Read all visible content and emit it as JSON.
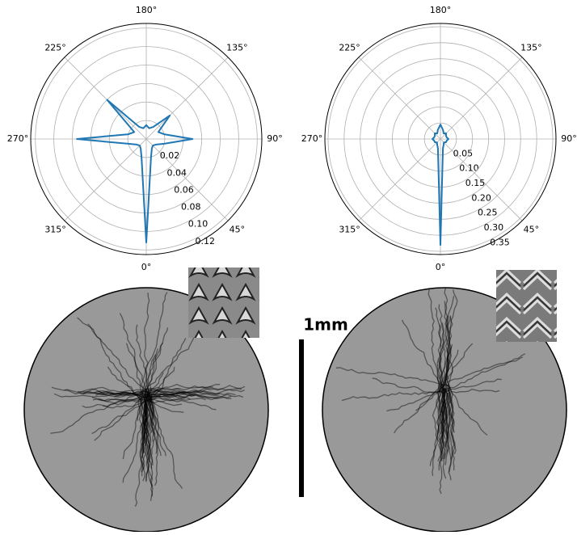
{
  "chart_data": [
    {
      "type": "polar",
      "color": "#1f77b4",
      "thetaticks": [
        {
          "value": 0,
          "label": "0°"
        },
        {
          "value": 45,
          "label": "45°"
        },
        {
          "value": 90,
          "label": "90°"
        },
        {
          "value": 135,
          "label": "135°"
        },
        {
          "value": 180,
          "label": "180°"
        },
        {
          "value": 225,
          "label": "225°"
        },
        {
          "value": 270,
          "label": "270°"
        },
        {
          "value": 315,
          "label": "315°"
        }
      ],
      "rlim": [
        0,
        0.125
      ],
      "rticks": [
        0.02,
        0.04,
        0.06,
        0.08,
        {
          "value": 0.1,
          "label": "0.10"
        },
        0.12
      ],
      "theta": [
        0,
        15,
        30,
        45,
        60,
        75,
        90,
        105,
        120,
        135,
        150,
        165,
        180,
        195,
        210,
        225,
        240,
        255,
        270,
        285,
        300,
        315,
        330,
        345
      ],
      "values": [
        0.112,
        0.02,
        0.012,
        0.01,
        0.012,
        0.02,
        0.05,
        0.02,
        0.015,
        0.036,
        0.015,
        0.012,
        0.015,
        0.012,
        0.015,
        0.06,
        0.015,
        0.02,
        0.075,
        0.02,
        0.012,
        0.01,
        0.012,
        0.02
      ]
    },
    {
      "type": "polar",
      "color": "#1f77b4",
      "thetaticks": [
        {
          "value": 0,
          "label": "0°"
        },
        {
          "value": 45,
          "label": "45°"
        },
        {
          "value": 90,
          "label": "90°"
        },
        {
          "value": 135,
          "label": "135°"
        },
        {
          "value": 180,
          "label": "180°"
        },
        {
          "value": 225,
          "label": "225°"
        },
        {
          "value": 270,
          "label": "270°"
        },
        {
          "value": 315,
          "label": "315°"
        }
      ],
      "rlim": [
        0,
        0.36
      ],
      "rticks": [
        0.05,
        {
          "value": 0.1,
          "label": "0.10"
        },
        0.15,
        {
          "value": 0.2,
          "label": "0.20"
        },
        0.25,
        {
          "value": 0.3,
          "label": "0.30"
        },
        0.35
      ],
      "theta": [
        0,
        15,
        30,
        45,
        60,
        75,
        90,
        105,
        120,
        135,
        150,
        165,
        180,
        195,
        210,
        225,
        240,
        255,
        270,
        285,
        300,
        315,
        330,
        345
      ],
      "values": [
        0.33,
        0.03,
        0.02,
        0.015,
        0.02,
        0.02,
        0.025,
        0.02,
        0.02,
        0.025,
        0.02,
        0.03,
        0.045,
        0.03,
        0.02,
        0.025,
        0.02,
        0.02,
        0.025,
        0.02,
        0.02,
        0.015,
        0.02,
        0.03
      ]
    }
  ],
  "scale_bar": {
    "label": "1mm"
  }
}
